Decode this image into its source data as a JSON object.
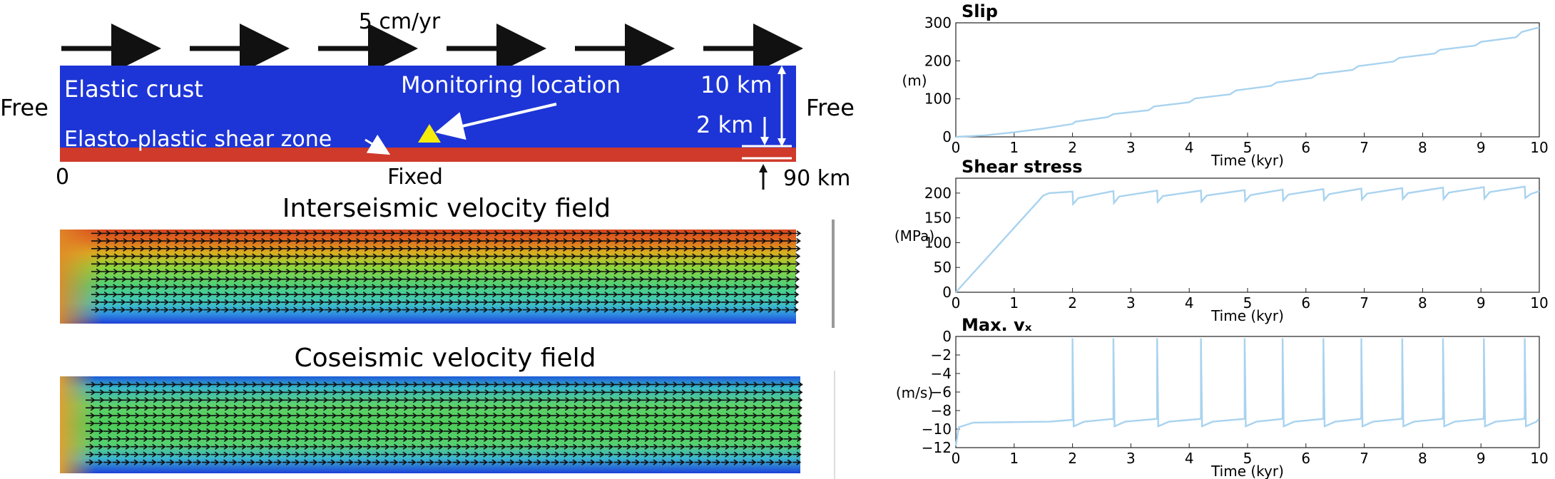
{
  "model": {
    "velocity_label": "5 cm/yr",
    "crust_label": "Elastic crust",
    "shear_zone_label": "Elasto-plastic shear zone",
    "monitoring_label": "Monitoring location",
    "free_left": "Free",
    "free_right": "Free",
    "fixed_label": "Fixed",
    "x_start": "0",
    "x_end": "90 km",
    "crust_thickness": "10 km",
    "zone_thickness": "2 km",
    "colors": {
      "crust": "#1d35d6",
      "shear_zone": "#cf3a2a",
      "marker": "#f4ec0c"
    }
  },
  "fields": {
    "interseismic_title": "Interseismic velocity field",
    "coseismic_title": "Coseismic velocity field"
  },
  "chart_data": [
    {
      "type": "line",
      "title": "Slip",
      "ylabel": "(m)",
      "xlabel": "Time (kyr)",
      "xlim": [
        0,
        10
      ],
      "ylim": [
        0,
        300
      ],
      "xticks": [
        0,
        1,
        2,
        3,
        4,
        5,
        6,
        7,
        8,
        9,
        10
      ],
      "yticks": [
        0,
        100,
        200,
        300
      ],
      "color": "#a9d3ef",
      "series": [
        {
          "x": [
            0,
            0.5,
            1,
            1.5,
            2,
            2.05,
            2.6,
            2.7,
            3.3,
            3.4,
            4.0,
            4.1,
            4.7,
            4.8,
            5.4,
            5.5,
            6.1,
            6.2,
            6.8,
            6.9,
            7.5,
            7.6,
            8.2,
            8.3,
            8.9,
            9.0,
            9.6,
            9.7,
            10
          ],
          "values": [
            0,
            4,
            12,
            22,
            34,
            40,
            52,
            60,
            70,
            80,
            91,
            101,
            112,
            122,
            134,
            143,
            155,
            165,
            176,
            186,
            198,
            208,
            219,
            229,
            240,
            250,
            262,
            276,
            288
          ]
        }
      ]
    },
    {
      "type": "line",
      "title": "Shear stress",
      "ylabel": "(MPa)",
      "xlabel": "Time (kyr)",
      "xlim": [
        0,
        10
      ],
      "ylim": [
        0,
        230
      ],
      "xticks": [
        0,
        1,
        2,
        3,
        4,
        5,
        6,
        7,
        8,
        9,
        10
      ],
      "yticks": [
        0,
        50,
        100,
        150,
        200
      ],
      "color": "#a9d3ef",
      "series": [
        {
          "x": [
            0,
            1.5,
            1.6,
            2.0,
            2.01,
            2.1,
            2.7,
            2.71,
            2.8,
            3.45,
            3.46,
            3.55,
            4.2,
            4.21,
            4.3,
            4.95,
            4.96,
            5.05,
            5.6,
            5.61,
            5.7,
            6.3,
            6.31,
            6.4,
            6.95,
            6.96,
            7.05,
            7.65,
            7.66,
            7.75,
            8.35,
            8.36,
            8.45,
            9.05,
            9.06,
            9.15,
            9.75,
            9.76,
            9.85,
            10
          ],
          "values": [
            0,
            195,
            200,
            203,
            178,
            190,
            204,
            180,
            193,
            205,
            182,
            194,
            205,
            183,
            195,
            206,
            184,
            196,
            207,
            185,
            197,
            208,
            186,
            198,
            209,
            187,
            199,
            210,
            188,
            200,
            211,
            188,
            201,
            212,
            189,
            202,
            213,
            190,
            198,
            204
          ]
        }
      ]
    },
    {
      "type": "line",
      "title": "Max. vₓ",
      "ylabel": "(m/s)",
      "xlabel": "Time (kyr)",
      "xlim": [
        0,
        10
      ],
      "ylim": [
        -12,
        0
      ],
      "xticks": [
        0,
        1,
        2,
        3,
        4,
        5,
        6,
        7,
        8,
        9,
        10
      ],
      "yticks": [
        0,
        -2,
        -4,
        -6,
        -8,
        -10,
        -12
      ],
      "color": "#a9d3ef",
      "events_x": [
        2.0,
        2.7,
        3.45,
        4.2,
        4.95,
        5.6,
        6.3,
        6.95,
        7.65,
        8.35,
        9.05,
        9.75
      ],
      "event_peak": -0.2,
      "series": [
        {
          "x": [
            0,
            0.05,
            0.3,
            1.6,
            2.0
          ],
          "values": [
            -11.8,
            -9.8,
            -9.3,
            -9.2,
            -9.0
          ]
        }
      ]
    }
  ]
}
